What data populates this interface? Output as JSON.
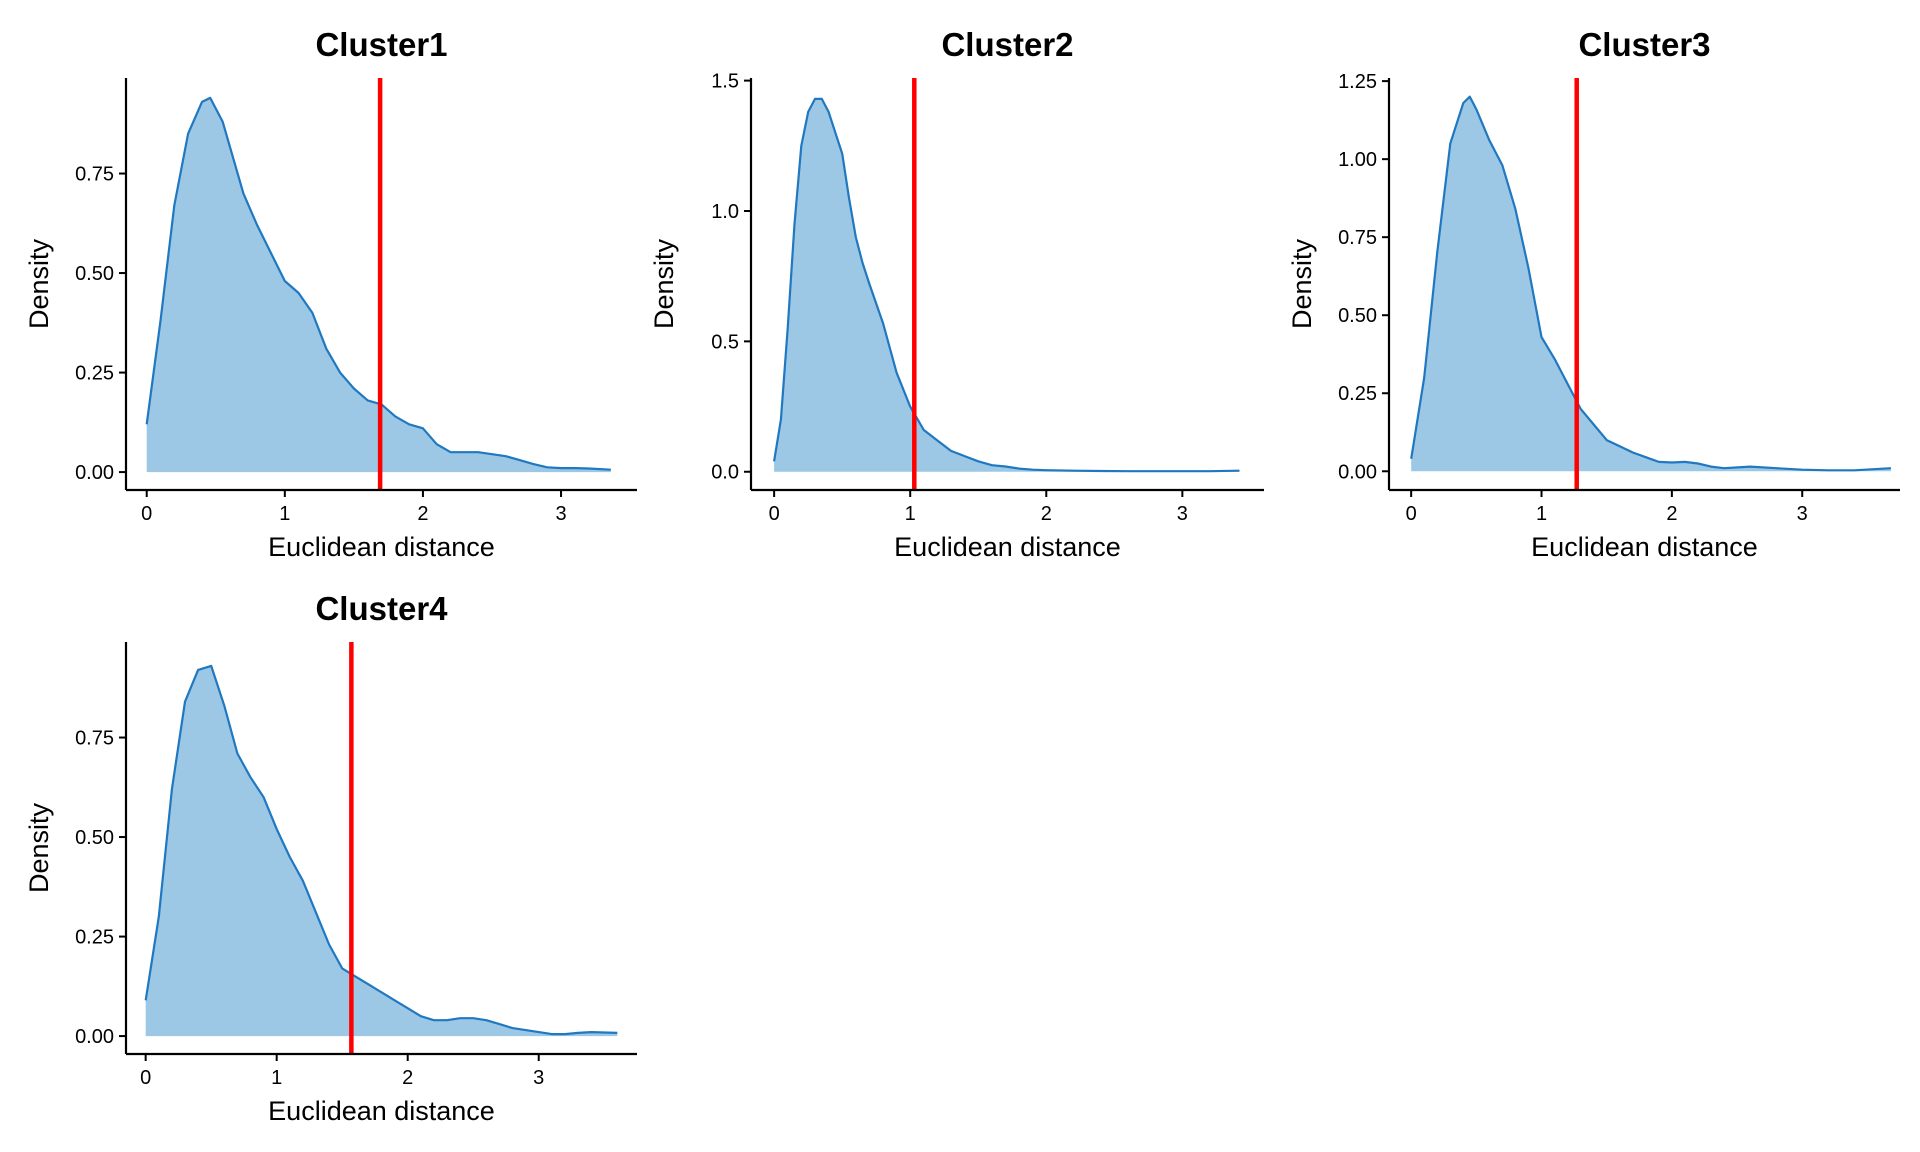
{
  "colors": {
    "fill": "#9CC8E6",
    "curve": "#1F78C0",
    "threshold": "#FF0000",
    "axis": "#000000"
  },
  "chart_data": [
    {
      "type": "area",
      "title": "Cluster1",
      "xlabel": "Euclidean distance",
      "ylabel": "Density",
      "xlim": [
        -0.15,
        3.55
      ],
      "ylim": [
        -0.045,
        0.99
      ],
      "xticks": [
        0,
        1,
        2,
        3
      ],
      "xtick_labels": [
        "0",
        "1",
        "2",
        "3"
      ],
      "yticks": [
        0,
        0.25,
        0.5,
        0.75
      ],
      "ytick_labels": [
        "0.00",
        "0.25",
        "0.50",
        "0.75"
      ],
      "threshold": 1.69,
      "x": [
        0,
        0.1,
        0.2,
        0.3,
        0.4,
        0.46,
        0.55,
        0.7,
        0.8,
        0.9,
        1.0,
        1.1,
        1.2,
        1.3,
        1.4,
        1.5,
        1.6,
        1.7,
        1.8,
        1.9,
        2.0,
        2.1,
        2.2,
        2.3,
        2.4,
        2.5,
        2.6,
        2.7,
        2.8,
        2.9,
        3.0,
        3.1,
        3.2,
        3.36
      ],
      "y": [
        0.12,
        0.38,
        0.67,
        0.85,
        0.93,
        0.94,
        0.88,
        0.7,
        0.62,
        0.55,
        0.48,
        0.45,
        0.4,
        0.31,
        0.25,
        0.21,
        0.18,
        0.17,
        0.14,
        0.12,
        0.11,
        0.07,
        0.05,
        0.05,
        0.05,
        0.045,
        0.04,
        0.03,
        0.02,
        0.012,
        0.01,
        0.01,
        0.009,
        0.006
      ]
    },
    {
      "type": "area",
      "title": "Cluster2",
      "xlabel": "Euclidean distance",
      "ylabel": "Density",
      "xlim": [
        -0.17,
        3.6
      ],
      "ylim": [
        -0.07,
        1.51
      ],
      "xticks": [
        0,
        1,
        2,
        3
      ],
      "xtick_labels": [
        "0",
        "1",
        "2",
        "3"
      ],
      "yticks": [
        0,
        0.5,
        1.0,
        1.5
      ],
      "ytick_labels": [
        "0.0",
        "0.5",
        "1.0",
        "1.5"
      ],
      "threshold": 1.03,
      "x": [
        0,
        0.05,
        0.1,
        0.15,
        0.2,
        0.25,
        0.3,
        0.35,
        0.4,
        0.45,
        0.5,
        0.55,
        0.6,
        0.65,
        0.7,
        0.8,
        0.9,
        1.0,
        1.1,
        1.2,
        1.3,
        1.4,
        1.5,
        1.6,
        1.7,
        1.8,
        1.9,
        2.0,
        2.2,
        2.4,
        2.6,
        2.8,
        3.0,
        3.2,
        3.42
      ],
      "y": [
        0.04,
        0.2,
        0.55,
        0.95,
        1.25,
        1.38,
        1.43,
        1.43,
        1.38,
        1.3,
        1.22,
        1.05,
        0.9,
        0.8,
        0.72,
        0.57,
        0.38,
        0.25,
        0.16,
        0.12,
        0.08,
        0.06,
        0.04,
        0.025,
        0.02,
        0.012,
        0.008,
        0.006,
        0.004,
        0.003,
        0.002,
        0.002,
        0.002,
        0.002,
        0.004
      ]
    },
    {
      "type": "area",
      "title": "Cluster3",
      "xlabel": "Euclidean distance",
      "ylabel": "Density",
      "xlim": [
        -0.17,
        3.75
      ],
      "ylim": [
        -0.06,
        1.26
      ],
      "xticks": [
        0,
        1,
        2,
        3
      ],
      "xtick_labels": [
        "0",
        "1",
        "2",
        "3"
      ],
      "yticks": [
        0,
        0.25,
        0.5,
        0.75,
        1.0,
        1.25
      ],
      "ytick_labels": [
        "0.00",
        "0.25",
        "0.50",
        "0.75",
        "1.00",
        "1.25"
      ],
      "threshold": 1.27,
      "x": [
        0,
        0.1,
        0.2,
        0.3,
        0.4,
        0.45,
        0.5,
        0.6,
        0.7,
        0.8,
        0.9,
        1.0,
        1.1,
        1.2,
        1.3,
        1.4,
        1.5,
        1.6,
        1.7,
        1.8,
        1.9,
        2.0,
        2.1,
        2.2,
        2.3,
        2.4,
        2.6,
        2.8,
        3.0,
        3.2,
        3.4,
        3.68
      ],
      "y": [
        0.04,
        0.3,
        0.7,
        1.05,
        1.18,
        1.2,
        1.16,
        1.06,
        0.98,
        0.84,
        0.65,
        0.43,
        0.36,
        0.28,
        0.2,
        0.15,
        0.1,
        0.08,
        0.06,
        0.045,
        0.03,
        0.028,
        0.03,
        0.025,
        0.015,
        0.01,
        0.015,
        0.01,
        0.005,
        0.003,
        0.003,
        0.01
      ]
    },
    {
      "type": "area",
      "title": "Cluster4",
      "xlabel": "Euclidean distance",
      "ylabel": "Density",
      "xlim": [
        -0.15,
        3.75
      ],
      "ylim": [
        -0.045,
        0.99
      ],
      "xticks": [
        0,
        1,
        2,
        3
      ],
      "xtick_labels": [
        "0",
        "1",
        "2",
        "3"
      ],
      "yticks": [
        0,
        0.25,
        0.5,
        0.75
      ],
      "ytick_labels": [
        "0.00",
        "0.25",
        "0.50",
        "0.75"
      ],
      "threshold": 1.57,
      "x": [
        0,
        0.1,
        0.2,
        0.3,
        0.4,
        0.5,
        0.6,
        0.7,
        0.8,
        0.9,
        1.0,
        1.1,
        1.2,
        1.3,
        1.4,
        1.5,
        1.6,
        1.7,
        1.8,
        1.9,
        2.0,
        2.1,
        2.2,
        2.3,
        2.4,
        2.5,
        2.6,
        2.7,
        2.8,
        2.9,
        3.0,
        3.1,
        3.2,
        3.3,
        3.4,
        3.6
      ],
      "y": [
        0.09,
        0.3,
        0.62,
        0.84,
        0.92,
        0.93,
        0.83,
        0.71,
        0.65,
        0.6,
        0.52,
        0.45,
        0.39,
        0.31,
        0.23,
        0.17,
        0.15,
        0.13,
        0.11,
        0.09,
        0.07,
        0.05,
        0.04,
        0.04,
        0.045,
        0.045,
        0.04,
        0.03,
        0.02,
        0.015,
        0.01,
        0.005,
        0.005,
        0.008,
        0.01,
        0.008
      ]
    }
  ]
}
